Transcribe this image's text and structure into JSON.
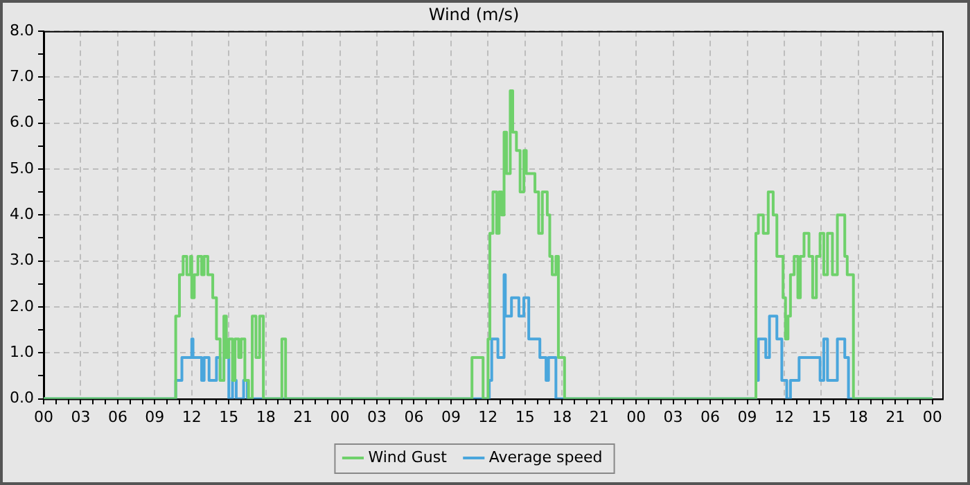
{
  "chart_data": {
    "type": "step",
    "title": "Wind (m/s)",
    "xlim": [
      0,
      72.8
    ],
    "xticks": [
      {
        "value": 0,
        "label": "00"
      },
      {
        "value": 1,
        "label": null
      },
      {
        "value": 2,
        "label": null
      },
      {
        "value": 3,
        "label": "03"
      },
      {
        "value": 4,
        "label": null
      },
      {
        "value": 5,
        "label": null
      },
      {
        "value": 6,
        "label": "06"
      },
      {
        "value": 7,
        "label": null
      },
      {
        "value": 8,
        "label": null
      },
      {
        "value": 9,
        "label": "09"
      },
      {
        "value": 10,
        "label": null
      },
      {
        "value": 11,
        "label": null
      },
      {
        "value": 12,
        "label": "12"
      },
      {
        "value": 13,
        "label": null
      },
      {
        "value": 14,
        "label": null
      },
      {
        "value": 15,
        "label": "15"
      },
      {
        "value": 16,
        "label": null
      },
      {
        "value": 17,
        "label": null
      },
      {
        "value": 18,
        "label": "18"
      },
      {
        "value": 19,
        "label": null
      },
      {
        "value": 20,
        "label": null
      },
      {
        "value": 21,
        "label": "21"
      },
      {
        "value": 22,
        "label": null
      },
      {
        "value": 23,
        "label": null
      },
      {
        "value": 24,
        "label": "00"
      },
      {
        "value": 25,
        "label": null
      },
      {
        "value": 26,
        "label": null
      },
      {
        "value": 27,
        "label": "03"
      },
      {
        "value": 28,
        "label": null
      },
      {
        "value": 29,
        "label": null
      },
      {
        "value": 30,
        "label": "06"
      },
      {
        "value": 31,
        "label": null
      },
      {
        "value": 32,
        "label": null
      },
      {
        "value": 33,
        "label": "09"
      },
      {
        "value": 34,
        "label": null
      },
      {
        "value": 35,
        "label": null
      },
      {
        "value": 36,
        "label": "12"
      },
      {
        "value": 37,
        "label": null
      },
      {
        "value": 38,
        "label": null
      },
      {
        "value": 39,
        "label": "15"
      },
      {
        "value": 40,
        "label": null
      },
      {
        "value": 41,
        "label": null
      },
      {
        "value": 42,
        "label": "18"
      },
      {
        "value": 43,
        "label": null
      },
      {
        "value": 44,
        "label": null
      },
      {
        "value": 45,
        "label": "21"
      },
      {
        "value": 46,
        "label": null
      },
      {
        "value": 47,
        "label": null
      },
      {
        "value": 48,
        "label": "00"
      },
      {
        "value": 49,
        "label": null
      },
      {
        "value": 50,
        "label": null
      },
      {
        "value": 51,
        "label": "03"
      },
      {
        "value": 52,
        "label": null
      },
      {
        "value": 53,
        "label": null
      },
      {
        "value": 54,
        "label": "06"
      },
      {
        "value": 55,
        "label": null
      },
      {
        "value": 56,
        "label": null
      },
      {
        "value": 57,
        "label": "09"
      },
      {
        "value": 58,
        "label": null
      },
      {
        "value": 59,
        "label": null
      },
      {
        "value": 60,
        "label": "12"
      },
      {
        "value": 61,
        "label": null
      },
      {
        "value": 62,
        "label": null
      },
      {
        "value": 63,
        "label": "15"
      },
      {
        "value": 64,
        "label": null
      },
      {
        "value": 65,
        "label": null
      },
      {
        "value": 66,
        "label": "18"
      },
      {
        "value": 67,
        "label": null
      },
      {
        "value": 68,
        "label": null
      },
      {
        "value": 69,
        "label": "21"
      },
      {
        "value": 70,
        "label": null
      },
      {
        "value": 71,
        "label": null
      },
      {
        "value": 72,
        "label": "00"
      }
    ],
    "ylim": [
      0,
      8
    ],
    "yticks": [
      {
        "value": 0,
        "label": "0.0"
      },
      {
        "value": 0.5,
        "label": null
      },
      {
        "value": 1,
        "label": "1.0"
      },
      {
        "value": 1.5,
        "label": null
      },
      {
        "value": 2,
        "label": "2.0"
      },
      {
        "value": 2.5,
        "label": null
      },
      {
        "value": 3,
        "label": "3.0"
      },
      {
        "value": 3.5,
        "label": null
      },
      {
        "value": 4,
        "label": "4.0"
      },
      {
        "value": 4.5,
        "label": null
      },
      {
        "value": 5,
        "label": "5.0"
      },
      {
        "value": 5.5,
        "label": null
      },
      {
        "value": 6,
        "label": "6.0"
      },
      {
        "value": 6.5,
        "label": null
      },
      {
        "value": 7,
        "label": "7.0"
      },
      {
        "value": 7.5,
        "label": null
      },
      {
        "value": 8,
        "label": "8.0"
      }
    ],
    "grid": true,
    "legend": "bottom",
    "marker": "none",
    "line_style": "solid",
    "series": [
      {
        "name": "Wind Gust",
        "color": "#6fd16b",
        "x": [
          0,
          10.7,
          11.0,
          11.3,
          11.6,
          11.9,
          12.0,
          12.2,
          12.5,
          12.8,
          13.0,
          13.3,
          13.7,
          14.0,
          14.3,
          14.6,
          14.8,
          15.0,
          15.3,
          15.5,
          15.8,
          16.0,
          16.3,
          16.6,
          16.9,
          17.2,
          17.5,
          17.8,
          19.3,
          19.6,
          34.7,
          35.6,
          36.0,
          36.15,
          36.4,
          36.7,
          36.9,
          37.1,
          37.3,
          37.5,
          37.8,
          38.0,
          38.3,
          38.6,
          38.9,
          39.1,
          39.4,
          39.8,
          40.1,
          40.4,
          40.8,
          41.0,
          41.2,
          41.5,
          41.7,
          42.2,
          57.7,
          57.9,
          58.3,
          58.7,
          59.1,
          59.4,
          59.9,
          60.1,
          60.3,
          60.5,
          60.8,
          61.1,
          61.3,
          61.6,
          62.0,
          62.3,
          62.6,
          62.9,
          63.2,
          63.5,
          63.9,
          64.3,
          64.9,
          65.1,
          65.6,
          72
        ],
        "values": [
          0,
          1.8,
          2.7,
          3.1,
          2.7,
          3.1,
          2.2,
          2.7,
          3.1,
          2.7,
          3.1,
          2.7,
          2.2,
          1.3,
          0.4,
          1.8,
          0.9,
          1.3,
          0.4,
          1.3,
          0.9,
          1.3,
          0.4,
          0,
          1.8,
          0.9,
          1.8,
          0,
          1.3,
          0,
          0.9,
          0,
          1.3,
          3.6,
          4.5,
          3.6,
          4.5,
          4.0,
          5.8,
          4.9,
          6.7,
          5.8,
          5.4,
          4.5,
          5.4,
          4.9,
          4.9,
          4.5,
          3.6,
          4.5,
          4.0,
          3.1,
          2.7,
          3.1,
          0.9,
          0,
          3.6,
          4.0,
          3.6,
          4.5,
          4.0,
          3.1,
          2.2,
          1.3,
          1.8,
          2.7,
          3.1,
          2.2,
          3.1,
          3.6,
          3.1,
          2.2,
          3.1,
          3.6,
          2.7,
          3.6,
          2.7,
          4.0,
          3.1,
          2.7,
          0,
          0
        ]
      },
      {
        "name": "Average speed",
        "color": "#4aa6dc",
        "x": [
          0,
          10.7,
          11.2,
          12.0,
          12.1,
          12.8,
          13.0,
          13.4,
          14.0,
          14.3,
          14.6,
          15.0,
          15.3,
          15.6,
          16.2,
          16.5,
          36.1,
          36.3,
          36.8,
          37.3,
          37.4,
          37.9,
          38.5,
          38.9,
          39.3,
          39.8,
          40.2,
          40.7,
          40.9,
          41.5,
          57.7,
          57.9,
          58.5,
          58.8,
          59.4,
          59.8,
          60.2,
          60.5,
          60.8,
          61.2,
          61.4,
          62.9,
          63.2,
          63.5,
          64.3,
          64.9,
          65.2,
          72
        ],
        "values": [
          0,
          0.4,
          0.9,
          1.3,
          0.9,
          0.4,
          0.9,
          0.4,
          0.9,
          0.4,
          0.9,
          0,
          0.4,
          0,
          0.4,
          0,
          0.4,
          1.3,
          0.9,
          2.7,
          1.8,
          2.2,
          1.8,
          2.2,
          1.3,
          1.3,
          0.9,
          0.4,
          0.9,
          0,
          0.4,
          1.3,
          0.9,
          1.8,
          1.3,
          0.4,
          0,
          0.4,
          0.4,
          0.9,
          0.9,
          0.4,
          1.3,
          0.4,
          1.3,
          0.9,
          0,
          0
        ]
      }
    ]
  }
}
